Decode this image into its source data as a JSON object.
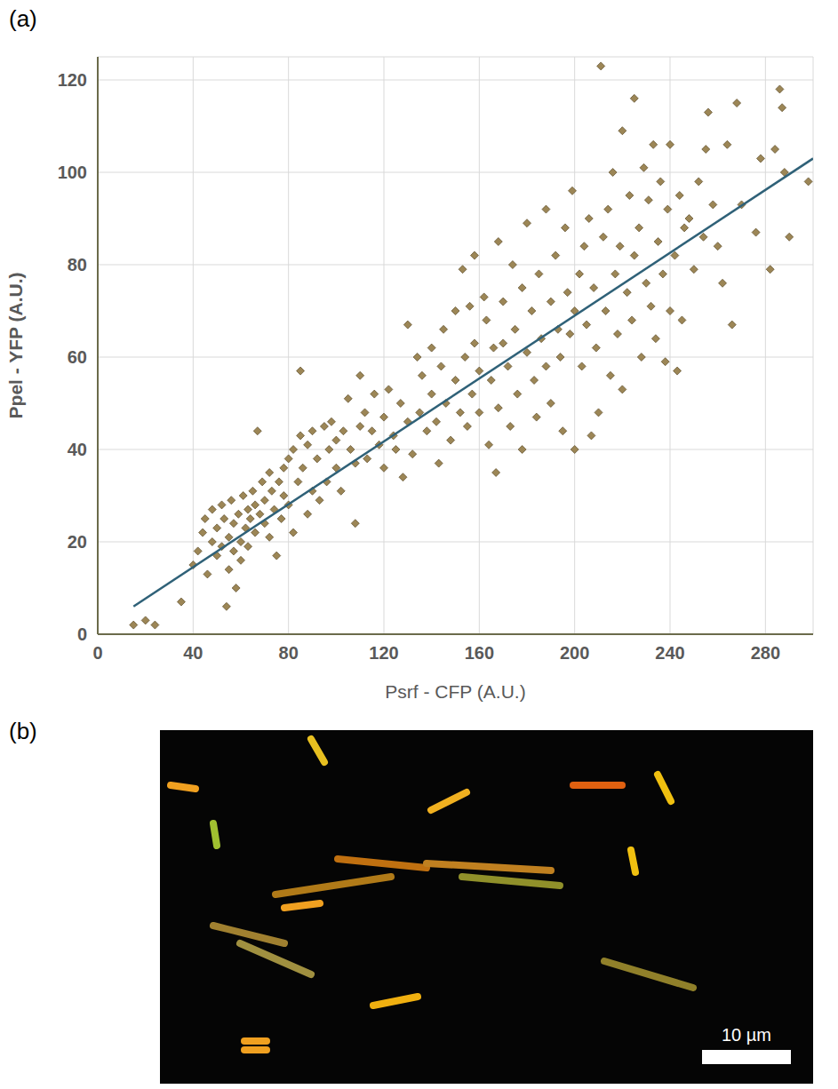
{
  "panel_labels": [
    "(a)",
    "(b)"
  ],
  "image": {
    "scale_bar": "10 µm"
  },
  "chart_data": {
    "type": "scatter",
    "x_label": "Psrf - CFP (A.U.)",
    "y_label": "Ppel - YFP (A.U.)",
    "xlim": [
      0,
      300
    ],
    "xticks": [
      0,
      40,
      80,
      120,
      160,
      200,
      240,
      280
    ],
    "ylim": [
      0,
      125
    ],
    "yticks": [
      0,
      20,
      40,
      60,
      80,
      100,
      120
    ],
    "grid": true,
    "series": [
      {
        "type": "scatter",
        "marker": "diamond",
        "color": "#9c8656",
        "x": [
          15,
          20,
          24,
          35,
          40,
          42,
          44,
          45,
          46,
          48,
          48,
          50,
          50,
          52,
          52,
          53,
          54,
          55,
          55,
          56,
          57,
          57,
          58,
          59,
          60,
          60,
          61,
          62,
          63,
          63,
          64,
          65,
          66,
          66,
          67,
          68,
          69,
          70,
          70,
          72,
          72,
          73,
          74,
          75,
          76,
          77,
          78,
          78,
          80,
          80,
          82,
          82,
          84,
          85,
          85,
          86,
          88,
          88,
          90,
          90,
          92,
          93,
          95,
          96,
          97,
          98,
          100,
          100,
          102,
          103,
          105,
          106,
          108,
          108,
          110,
          110,
          112,
          113,
          115,
          116,
          118,
          120,
          120,
          122,
          124,
          125,
          127,
          128,
          130,
          130,
          132,
          134,
          135,
          136,
          138,
          140,
          140,
          142,
          143,
          144,
          145,
          146,
          148,
          150,
          150,
          152,
          153,
          154,
          155,
          156,
          157,
          158,
          158,
          160,
          160,
          162,
          163,
          164,
          165,
          166,
          167,
          168,
          168,
          170,
          170,
          172,
          173,
          174,
          175,
          176,
          178,
          178,
          180,
          180,
          182,
          183,
          184,
          185,
          186,
          188,
          188,
          190,
          190,
          192,
          193,
          194,
          195,
          196,
          197,
          198,
          199,
          200,
          200,
          202,
          203,
          204,
          205,
          206,
          207,
          208,
          209,
          210,
          211,
          212,
          213,
          214,
          215,
          216,
          217,
          218,
          219,
          220,
          220,
          222,
          223,
          224,
          225,
          225,
          227,
          228,
          229,
          230,
          231,
          232,
          233,
          234,
          235,
          236,
          237,
          238,
          239,
          240,
          240,
          242,
          243,
          244,
          245,
          246,
          248,
          250,
          252,
          254,
          255,
          256,
          258,
          260,
          262,
          264,
          266,
          268,
          270,
          276,
          278,
          282,
          284,
          286,
          287,
          288,
          290,
          298
        ],
        "values": [
          2,
          3,
          2,
          7,
          15,
          18,
          22,
          25,
          13,
          20,
          27,
          17,
          23,
          19,
          28,
          25,
          6,
          21,
          14,
          29,
          18,
          24,
          10,
          26,
          20,
          16,
          30,
          23,
          27,
          19,
          25,
          31,
          22,
          28,
          44,
          26,
          33,
          24,
          29,
          21,
          35,
          31,
          27,
          17,
          33,
          25,
          36,
          30,
          38,
          28,
          40,
          22,
          33,
          57,
          43,
          36,
          41,
          26,
          31,
          44,
          38,
          29,
          45,
          33,
          40,
          46,
          36,
          42,
          31,
          44,
          51,
          40,
          37,
          24,
          45,
          56,
          48,
          38,
          44,
          52,
          41,
          47,
          36,
          53,
          43,
          40,
          50,
          34,
          67,
          46,
          39,
          60,
          48,
          56,
          44,
          52,
          62,
          46,
          37,
          58,
          66,
          50,
          42,
          70,
          55,
          48,
          79,
          60,
          45,
          71,
          52,
          82,
          63,
          57,
          48,
          73,
          68,
          41,
          55,
          62,
          35,
          85,
          49,
          63,
          72,
          58,
          45,
          80,
          66,
          52,
          75,
          40,
          61,
          89,
          70,
          55,
          47,
          78,
          64,
          92,
          58,
          72,
          50,
          82,
          66,
          60,
          44,
          88,
          74,
          65,
          96,
          70,
          40,
          78,
          58,
          84,
          67,
          90,
          43,
          75,
          62,
          48,
          123,
          86,
          70,
          92,
          56,
          100,
          78,
          65,
          84,
          109,
          53,
          74,
          95,
          68,
          116,
          82,
          88,
          60,
          101,
          76,
          94,
          71,
          106,
          64,
          85,
          98,
          78,
          59,
          92,
          106,
          70,
          82,
          57,
          95,
          68,
          88,
          90,
          79,
          98,
          86,
          105,
          113,
          93,
          84,
          76,
          106,
          67,
          115,
          93,
          87,
          103,
          79,
          105,
          118,
          114,
          100,
          86,
          98
        ]
      },
      {
        "type": "line",
        "color": "#2f6178",
        "x": [
          15,
          300
        ],
        "values": [
          6,
          103
        ]
      }
    ]
  }
}
